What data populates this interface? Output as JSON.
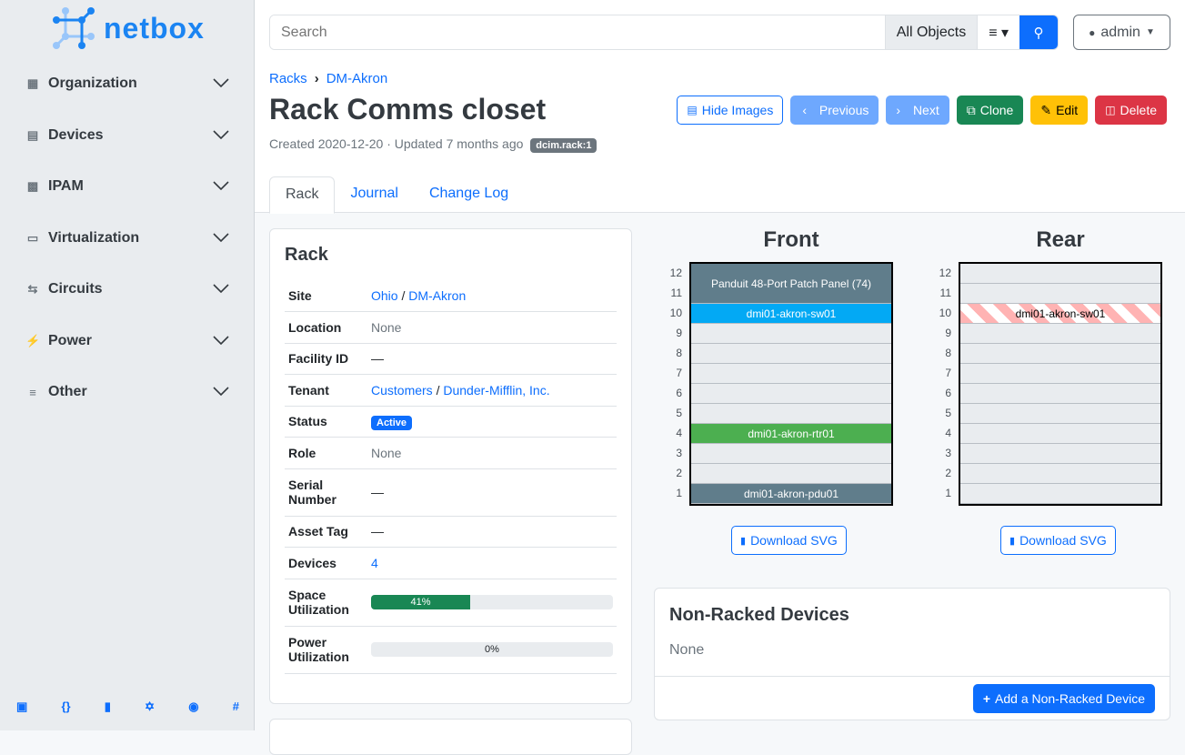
{
  "brand": "netbox",
  "sidebar": {
    "items": [
      {
        "label": "Organization",
        "icon": "domain-icon"
      },
      {
        "label": "Devices",
        "icon": "server-icon"
      },
      {
        "label": "IPAM",
        "icon": "counter-icon"
      },
      {
        "label": "Virtualization",
        "icon": "monitor-icon"
      },
      {
        "label": "Circuits",
        "icon": "transit-icon"
      },
      {
        "label": "Power",
        "icon": "flash-icon"
      },
      {
        "label": "Other",
        "icon": "notes-icon"
      }
    ],
    "footer": [
      "book-icon",
      "api-icon",
      "docs-icon",
      "graphql-icon",
      "github-icon",
      "slack-icon"
    ]
  },
  "search": {
    "placeholder": "Search",
    "scope": "All Objects"
  },
  "user": "admin",
  "breadcrumb": [
    "Racks",
    "DM-Akron"
  ],
  "title": "Rack Comms closet",
  "meta": "Created 2020-12-20 · Updated 7 months ago",
  "badge": "dcim.rack:1",
  "buttons": {
    "hide_images": "Hide Images",
    "previous": "Previous",
    "next": "Next",
    "clone": "Clone",
    "edit": "Edit",
    "delete": "Delete"
  },
  "tabs": [
    "Rack",
    "Journal",
    "Change Log"
  ],
  "rack_card": {
    "title": "Rack",
    "site": [
      "Ohio",
      "DM-Akron"
    ],
    "location": "None",
    "facility_id": "—",
    "tenant": [
      "Customers",
      "Dunder-Mifflin, Inc."
    ],
    "status": "Active",
    "role": "None",
    "serial": "—",
    "asset_tag": "—",
    "devices": "4",
    "space_util": 41,
    "space_util_label": "41%",
    "power_util": 0,
    "power_util_label": "0%",
    "labels": {
      "site": "Site",
      "location": "Location",
      "facility": "Facility ID",
      "tenant": "Tenant",
      "status": "Status",
      "role": "Role",
      "serial": "Serial Number",
      "asset": "Asset Tag",
      "devices": "Devices",
      "space": "Space Utilization",
      "power": "Power Utilization"
    }
  },
  "elevation": {
    "front_title": "Front",
    "rear_title": "Rear",
    "download": "Download SVG",
    "front": [
      {
        "name": "Panduit 48-Port Patch Panel (74)",
        "top": 12,
        "height": 2,
        "color": "#607d8b"
      },
      {
        "name": "dmi01-akron-sw01",
        "top": 10,
        "height": 1,
        "color": "#03a9f4"
      },
      {
        "name": "dmi01-akron-rtr01",
        "top": 4,
        "height": 1,
        "color": "#4caf50"
      },
      {
        "name": "dmi01-akron-pdu01",
        "top": 1,
        "height": 1,
        "color": "#607d8b"
      }
    ],
    "rear": [
      {
        "name": "dmi01-akron-sw01",
        "top": 10,
        "height": 1,
        "color": "#ffb3b3"
      }
    ]
  },
  "non_racked": {
    "title": "Non-Racked Devices",
    "value": "None",
    "add": "Add a Non-Racked Device"
  }
}
